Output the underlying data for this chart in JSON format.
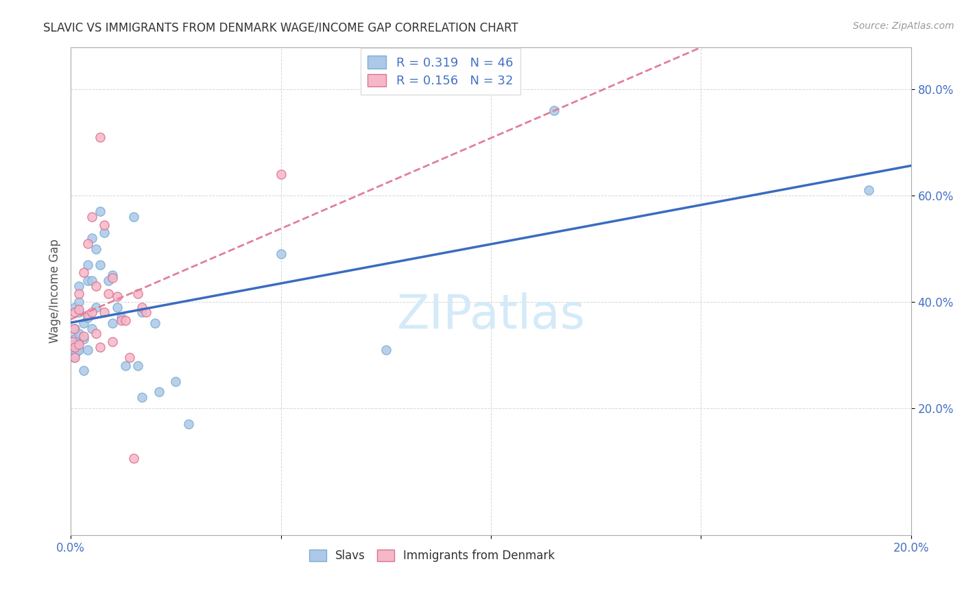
{
  "title": "SLAVIC VS IMMIGRANTS FROM DENMARK WAGE/INCOME GAP CORRELATION CHART",
  "source": "Source: ZipAtlas.com",
  "ylabel": "Wage/Income Gap",
  "xlim": [
    0.0,
    0.2
  ],
  "ylim": [
    -0.04,
    0.88
  ],
  "series1_name": "Slavs",
  "series1_color": "#adc8e8",
  "series1_edge": "#7aaed4",
  "series1_R": 0.319,
  "series1_N": 46,
  "series1_line_color": "#3a6cc0",
  "series2_name": "Immigrants from Denmark",
  "series2_color": "#f5b8c8",
  "series2_edge": "#e07090",
  "series2_R": 0.156,
  "series2_N": 32,
  "series2_line_color": "#e08098",
  "watermark": "ZIPatlas",
  "watermark_color": "#d4eaf8",
  "background_color": "#ffffff",
  "slavs_x": [
    0.0005,
    0.0005,
    0.0008,
    0.001,
    0.001,
    0.001,
    0.001,
    0.001,
    0.002,
    0.002,
    0.002,
    0.002,
    0.002,
    0.003,
    0.003,
    0.003,
    0.004,
    0.004,
    0.004,
    0.004,
    0.005,
    0.005,
    0.005,
    0.006,
    0.006,
    0.007,
    0.007,
    0.008,
    0.009,
    0.01,
    0.01,
    0.011,
    0.012,
    0.013,
    0.015,
    0.016,
    0.017,
    0.017,
    0.02,
    0.021,
    0.025,
    0.028,
    0.05,
    0.075,
    0.115,
    0.19
  ],
  "slavs_y": [
    0.315,
    0.305,
    0.295,
    0.35,
    0.33,
    0.32,
    0.39,
    0.3,
    0.34,
    0.43,
    0.4,
    0.38,
    0.31,
    0.36,
    0.33,
    0.27,
    0.47,
    0.44,
    0.37,
    0.31,
    0.52,
    0.44,
    0.35,
    0.5,
    0.39,
    0.57,
    0.47,
    0.53,
    0.44,
    0.45,
    0.36,
    0.39,
    0.37,
    0.28,
    0.56,
    0.28,
    0.38,
    0.22,
    0.36,
    0.23,
    0.25,
    0.17,
    0.49,
    0.31,
    0.76,
    0.61
  ],
  "slavs_big_x": [
    0.0
  ],
  "slavs_big_y": [
    0.315
  ],
  "denmark_x": [
    0.0005,
    0.0008,
    0.001,
    0.001,
    0.001,
    0.002,
    0.002,
    0.002,
    0.003,
    0.003,
    0.004,
    0.004,
    0.005,
    0.005,
    0.006,
    0.006,
    0.007,
    0.007,
    0.008,
    0.008,
    0.009,
    0.01,
    0.01,
    0.011,
    0.012,
    0.013,
    0.014,
    0.015,
    0.016,
    0.017,
    0.018,
    0.05
  ],
  "denmark_y": [
    0.325,
    0.35,
    0.38,
    0.315,
    0.295,
    0.415,
    0.385,
    0.32,
    0.455,
    0.335,
    0.51,
    0.375,
    0.56,
    0.38,
    0.43,
    0.34,
    0.71,
    0.315,
    0.545,
    0.38,
    0.415,
    0.445,
    0.325,
    0.41,
    0.365,
    0.365,
    0.295,
    0.105,
    0.415,
    0.39,
    0.38,
    0.64
  ],
  "denmark_big_x": [
    0.0
  ],
  "denmark_big_y": [
    0.33
  ]
}
